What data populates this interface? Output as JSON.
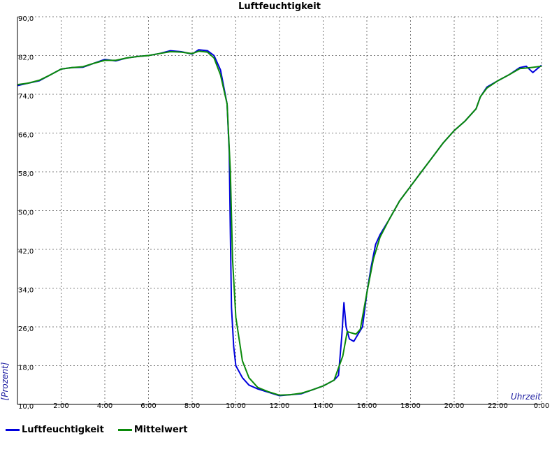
{
  "chart_data": {
    "type": "line",
    "title": "Luftfeuchtigkeit",
    "xlabel": "Uhrzeit",
    "ylabel": "[Prozent]",
    "ylim": [
      10,
      90
    ],
    "xlim": [
      0,
      24
    ],
    "y_ticks": [
      "90,0",
      "82,0",
      "74,0",
      "66,0",
      "58,0",
      "50,0",
      "42,0",
      "34,0",
      "26,0",
      "18,0",
      "10,0"
    ],
    "x_ticks": [
      "2:00",
      "4:00",
      "6:00",
      "8:00",
      "10:00",
      "12:00",
      "14:00",
      "16:00",
      "18:00",
      "20:00",
      "22:00",
      "0:00"
    ],
    "grid": true,
    "legend_position": "bottom-left",
    "series": [
      {
        "name": "Luftfeuchtigkeit",
        "color": "#0000dd",
        "points": [
          [
            0.0,
            75.8
          ],
          [
            0.5,
            76.3
          ],
          [
            1.0,
            76.8
          ],
          [
            1.5,
            78.0
          ],
          [
            2.0,
            79.2
          ],
          [
            2.5,
            79.5
          ],
          [
            3.0,
            79.6
          ],
          [
            3.5,
            80.4
          ],
          [
            4.0,
            81.2
          ],
          [
            4.5,
            80.9
          ],
          [
            5.0,
            81.5
          ],
          [
            5.5,
            81.8
          ],
          [
            6.0,
            82.0
          ],
          [
            6.5,
            82.4
          ],
          [
            7.0,
            83.0
          ],
          [
            7.5,
            82.8
          ],
          [
            8.0,
            82.3
          ],
          [
            8.3,
            83.2
          ],
          [
            8.7,
            83.0
          ],
          [
            9.0,
            82.0
          ],
          [
            9.3,
            79.0
          ],
          [
            9.6,
            72.0
          ],
          [
            9.7,
            62.0
          ],
          [
            9.75,
            45.0
          ],
          [
            9.8,
            30.0
          ],
          [
            9.9,
            22.0
          ],
          [
            10.0,
            18.0
          ],
          [
            10.3,
            15.5
          ],
          [
            10.6,
            14.0
          ],
          [
            11.0,
            13.2
          ],
          [
            11.5,
            12.5
          ],
          [
            12.0,
            11.8
          ],
          [
            12.5,
            12.0
          ],
          [
            13.0,
            12.2
          ],
          [
            13.5,
            13.0
          ],
          [
            14.0,
            13.8
          ],
          [
            14.5,
            15.0
          ],
          [
            14.7,
            16.0
          ],
          [
            14.85,
            24.0
          ],
          [
            14.95,
            31.0
          ],
          [
            15.05,
            26.0
          ],
          [
            15.2,
            23.5
          ],
          [
            15.4,
            23.0
          ],
          [
            15.6,
            24.5
          ],
          [
            15.8,
            26.0
          ],
          [
            16.0,
            33.0
          ],
          [
            16.2,
            38.5
          ],
          [
            16.4,
            43.0
          ],
          [
            16.6,
            45.0
          ],
          [
            17.0,
            48.0
          ],
          [
            17.5,
            52.0
          ],
          [
            18.0,
            55.0
          ],
          [
            18.5,
            58.0
          ],
          [
            19.0,
            61.0
          ],
          [
            19.5,
            64.0
          ],
          [
            20.0,
            66.5
          ],
          [
            20.5,
            68.5
          ],
          [
            21.0,
            71.0
          ],
          [
            21.2,
            73.5
          ],
          [
            21.5,
            75.5
          ],
          [
            22.0,
            76.8
          ],
          [
            22.5,
            78.0
          ],
          [
            23.0,
            79.5
          ],
          [
            23.3,
            79.8
          ],
          [
            23.6,
            78.5
          ],
          [
            24.0,
            80.0
          ]
        ]
      },
      {
        "name": "Mittelwert",
        "color": "#0a8a0a",
        "points": [
          [
            0.0,
            76.0
          ],
          [
            0.5,
            76.3
          ],
          [
            1.0,
            76.9
          ],
          [
            1.5,
            78.0
          ],
          [
            2.0,
            79.2
          ],
          [
            2.5,
            79.5
          ],
          [
            3.0,
            79.7
          ],
          [
            3.5,
            80.4
          ],
          [
            4.0,
            81.0
          ],
          [
            4.5,
            81.0
          ],
          [
            5.0,
            81.5
          ],
          [
            5.5,
            81.8
          ],
          [
            6.0,
            82.0
          ],
          [
            6.5,
            82.4
          ],
          [
            7.0,
            82.8
          ],
          [
            7.5,
            82.7
          ],
          [
            8.0,
            82.4
          ],
          [
            8.3,
            82.9
          ],
          [
            8.7,
            82.7
          ],
          [
            9.0,
            81.5
          ],
          [
            9.3,
            78.0
          ],
          [
            9.6,
            72.0
          ],
          [
            9.75,
            58.0
          ],
          [
            9.85,
            40.0
          ],
          [
            10.0,
            28.0
          ],
          [
            10.3,
            19.0
          ],
          [
            10.6,
            15.5
          ],
          [
            11.0,
            13.5
          ],
          [
            11.5,
            12.6
          ],
          [
            12.0,
            11.9
          ],
          [
            12.5,
            12.0
          ],
          [
            13.0,
            12.3
          ],
          [
            13.5,
            13.0
          ],
          [
            14.0,
            13.8
          ],
          [
            14.5,
            15.0
          ],
          [
            14.9,
            20.0
          ],
          [
            15.1,
            25.0
          ],
          [
            15.5,
            24.5
          ],
          [
            15.7,
            25.5
          ],
          [
            16.0,
            33.0
          ],
          [
            16.3,
            40.0
          ],
          [
            16.6,
            44.5
          ],
          [
            17.0,
            48.0
          ],
          [
            17.5,
            52.0
          ],
          [
            18.0,
            55.0
          ],
          [
            18.5,
            58.0
          ],
          [
            19.0,
            61.0
          ],
          [
            19.5,
            64.0
          ],
          [
            20.0,
            66.5
          ],
          [
            20.5,
            68.5
          ],
          [
            21.0,
            71.0
          ],
          [
            21.2,
            73.5
          ],
          [
            21.5,
            75.3
          ],
          [
            22.0,
            76.8
          ],
          [
            22.5,
            78.0
          ],
          [
            23.0,
            79.3
          ],
          [
            23.5,
            79.5
          ],
          [
            24.0,
            79.8
          ]
        ]
      }
    ]
  }
}
